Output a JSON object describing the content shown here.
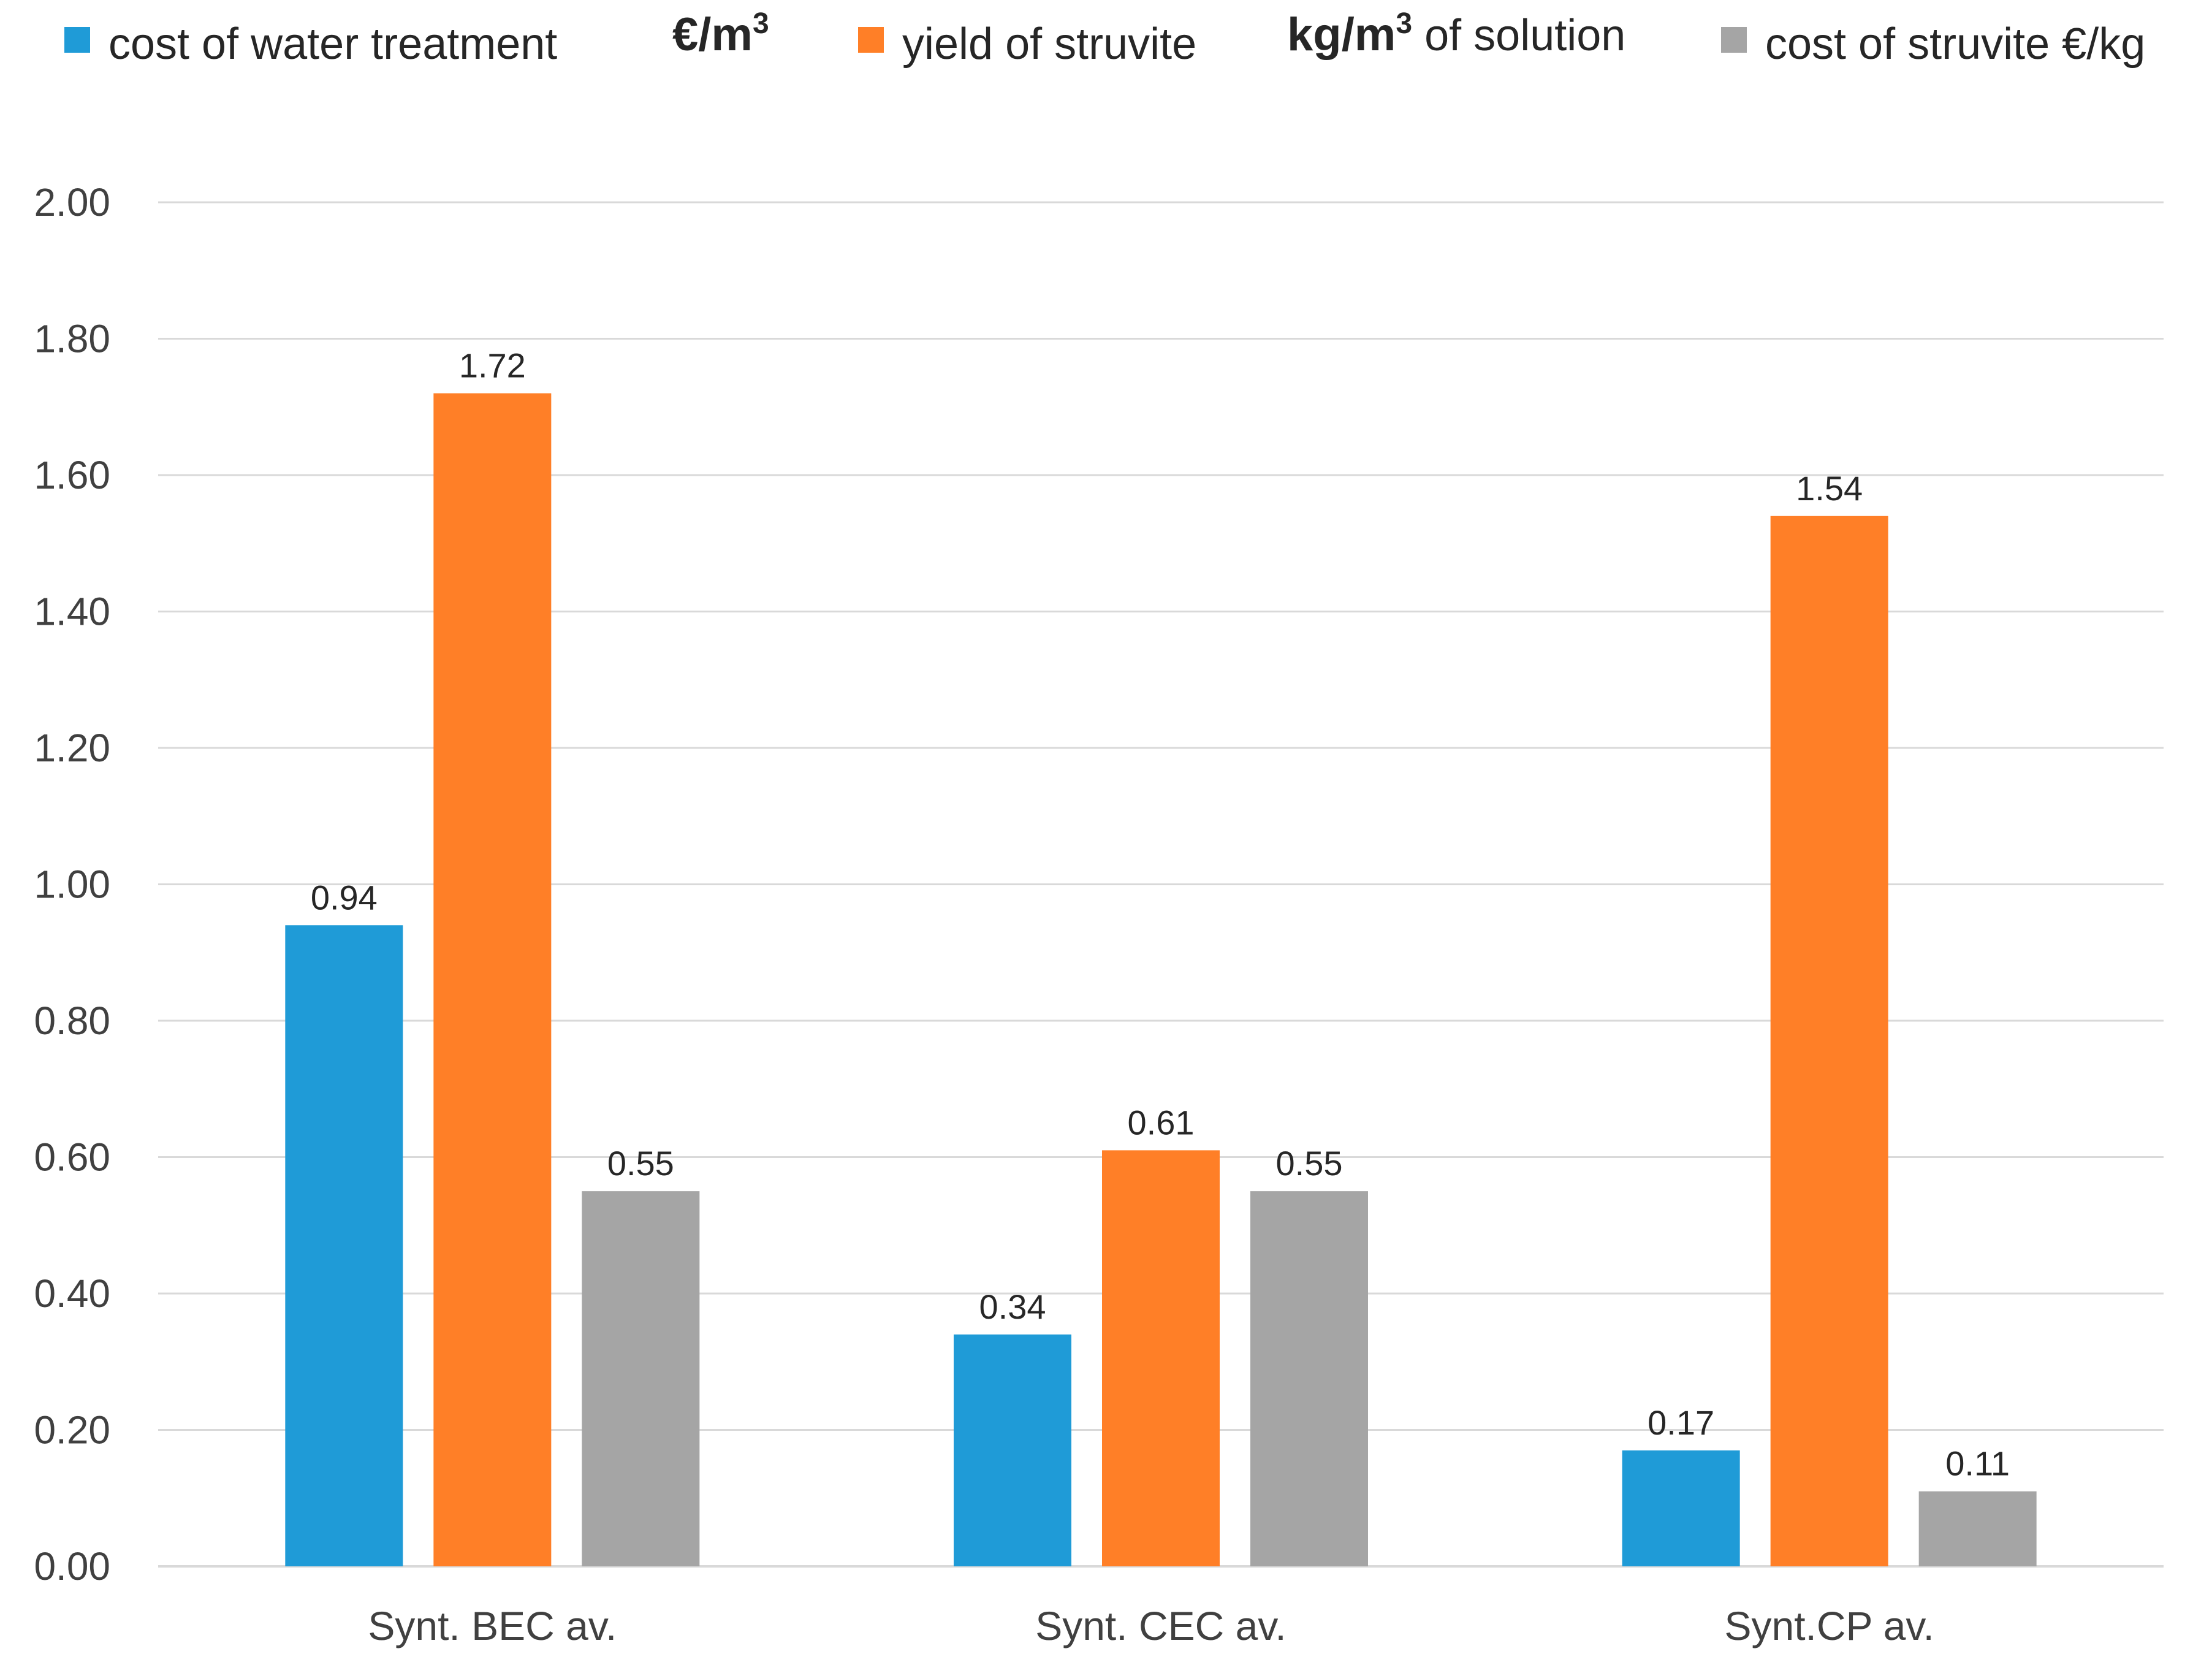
{
  "chart_data": {
    "type": "bar",
    "title": "",
    "xlabel": "",
    "ylabel": "",
    "ylim": [
      0,
      2
    ],
    "ytick_step": 0.2,
    "grid": true,
    "legend_position": "top",
    "categories": [
      "Synt. BEC av.",
      "Synt. CEC av.",
      "Synt.CP av."
    ],
    "series": [
      {
        "name": "cost of water treatment",
        "unit_main": "€/m",
        "unit_sup": "3",
        "unit_tail": "",
        "color": "#1f9bd7",
        "values": [
          0.94,
          0.34,
          0.17
        ]
      },
      {
        "name": "yield of struvite",
        "unit_main": "kg/m",
        "unit_sup": "3",
        "unit_tail": " of solution",
        "color": "#ff7f27",
        "values": [
          1.72,
          0.61,
          1.54
        ]
      },
      {
        "name": "cost of struvite €/kg",
        "unit_main": "",
        "unit_sup": "",
        "unit_tail": "",
        "color": "#a5a5a5",
        "values": [
          0.55,
          0.55,
          0.11
        ]
      }
    ],
    "tick_labels": [
      "0.00",
      "0.20",
      "0.40",
      "0.60",
      "0.80",
      "1.00",
      "1.20",
      "1.40",
      "1.60",
      "1.80",
      "2.00"
    ],
    "data_labels": [
      [
        "0.94",
        "0.34",
        "0.17"
      ],
      [
        "1.72",
        "0.61",
        "1.54"
      ],
      [
        "0.55",
        "0.55",
        "0.11"
      ]
    ],
    "gridline_color": "#d9d9d9"
  }
}
